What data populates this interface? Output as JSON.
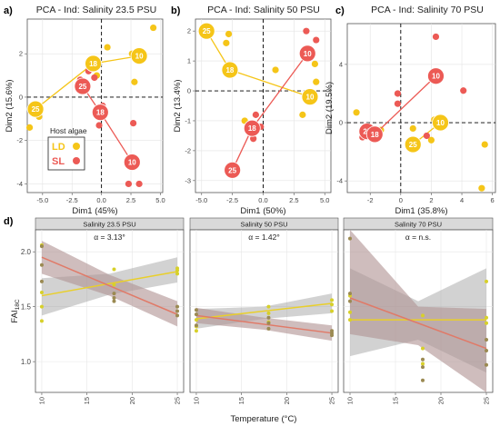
{
  "colors": {
    "LD": "#f5c518",
    "SL": "#ec5a55",
    "LD_line": "#e9cf2a",
    "SL_line": "#e07a68",
    "strip": "#d9d9d9",
    "ribbon": "#8a8a8a"
  },
  "legend": {
    "title": "Host algae",
    "items": [
      "LD",
      "SL"
    ]
  },
  "chart_data": [
    {
      "panel": "a)",
      "type": "scatter",
      "title": "PCA - Ind: Salinity 23.5 PSU",
      "xlabel": "Dim1 (45%)",
      "ylabel": "Dim2 (15.6%)",
      "xlim": [
        -6.3,
        5.2
      ],
      "ylim": [
        -4.4,
        3.6
      ],
      "xticks": [
        -5.0,
        -2.5,
        0.0,
        2.5,
        5.0
      ],
      "yticks": [
        -4,
        -2,
        0,
        2
      ],
      "xtick_labels": [
        "-5.0",
        "-2.5",
        "0.0",
        "2.5",
        "5.0"
      ],
      "ytick_labels": [
        "-4",
        "-2",
        "0",
        "2"
      ],
      "ld_points": [
        [
          -6.1,
          -1.4
        ],
        [
          -5.8,
          -0.4
        ],
        [
          -5.3,
          -0.9
        ],
        [
          0.5,
          2.3
        ],
        [
          2.6,
          2.0
        ],
        [
          2.8,
          0.7
        ],
        [
          4.4,
          3.2
        ],
        [
          -0.4,
          1.0
        ]
      ],
      "sl_points": [
        [
          -1.8,
          0.8
        ],
        [
          -0.6,
          0.9
        ],
        [
          -1.1,
          1.2
        ],
        [
          0.1,
          -0.4
        ],
        [
          2.7,
          -1.2
        ],
        [
          2.3,
          -4.0
        ],
        [
          3.2,
          -4.0
        ],
        [
          -0.2,
          -1.3
        ]
      ],
      "ld_centroids": [
        {
          "label": "25",
          "x": -5.6,
          "y": -0.55
        },
        {
          "label": "18",
          "x": -0.7,
          "y": 1.55
        },
        {
          "label": "10",
          "x": 3.2,
          "y": 1.9
        }
      ],
      "sl_centroids": [
        {
          "label": "25",
          "x": -1.6,
          "y": 0.5
        },
        {
          "label": "18",
          "x": -0.1,
          "y": -0.7
        },
        {
          "label": "10",
          "x": 2.6,
          "y": -3.0
        }
      ]
    },
    {
      "panel": "b)",
      "type": "scatter",
      "title": "PCA - Ind: Salinity 50 PSU",
      "xlabel": "Dim1 (50%)",
      "ylabel": "Dim2 (13.4%)",
      "xlim": [
        -5.5,
        5.5
      ],
      "ylim": [
        -3.4,
        2.4
      ],
      "xticks": [
        -5.0,
        -2.5,
        0.0,
        2.5,
        5.0
      ],
      "yticks": [
        -3,
        -2,
        -1,
        0,
        1,
        2
      ],
      "xtick_labels": [
        "-5.0",
        "-2.5",
        "0.0",
        "2.5",
        "5.0"
      ],
      "ytick_labels": [
        "-3",
        "-2",
        "-1",
        "0",
        "1",
        "2"
      ],
      "ld_points": [
        [
          -2.8,
          1.9
        ],
        [
          -3.0,
          1.6
        ],
        [
          -5.0,
          2.0
        ],
        [
          -1.5,
          -1.0
        ],
        [
          -0.9,
          -1.1
        ],
        [
          3.2,
          -0.8
        ],
        [
          4.2,
          0.9
        ],
        [
          4.3,
          0.3
        ],
        [
          1.0,
          0.7
        ]
      ],
      "sl_points": [
        [
          4.3,
          1.7
        ],
        [
          3.5,
          2.0
        ],
        [
          -0.6,
          -0.8
        ],
        [
          -0.8,
          -1.6
        ],
        [
          -0.2,
          -1.2
        ],
        [
          4.0,
          -0.2
        ],
        [
          -2.6,
          -2.6
        ]
      ],
      "ld_centroids": [
        {
          "label": "25",
          "x": -4.6,
          "y": 2.0
        },
        {
          "label": "18",
          "x": -2.7,
          "y": 0.7
        },
        {
          "label": "10",
          "x": 3.8,
          "y": -0.2
        }
      ],
      "sl_centroids": [
        {
          "label": "25",
          "x": -2.5,
          "y": -2.65
        },
        {
          "label": "18",
          "x": -0.9,
          "y": -1.25
        },
        {
          "label": "10",
          "x": 3.6,
          "y": 1.25
        }
      ]
    },
    {
      "panel": "c)",
      "type": "scatter",
      "title": "PCA - Ind: Salinity 70 PSU",
      "xlabel": "Dim1 (35.8%)",
      "ylabel": "Dim2 (19.5%)",
      "xlim": [
        -3.5,
        6.2
      ],
      "ylim": [
        -4.8,
        6.8
      ],
      "xticks": [
        -2,
        0,
        2,
        4,
        6
      ],
      "yticks": [
        -4,
        0,
        4
      ],
      "xtick_labels": [
        "-2",
        "0",
        "2",
        "4",
        "6"
      ],
      "ytick_labels": [
        "-4",
        "0",
        "4"
      ],
      "ld_points": [
        [
          -2.9,
          0.7
        ],
        [
          -2.4,
          -0.6
        ],
        [
          -1.3,
          -0.5
        ],
        [
          0.8,
          -0.4
        ],
        [
          2.2,
          0.2
        ],
        [
          5.5,
          -1.5
        ],
        [
          5.3,
          -4.5
        ],
        [
          2.0,
          -1.2
        ]
      ],
      "sl_points": [
        [
          -2.5,
          -1.0
        ],
        [
          -1.7,
          -1.1
        ],
        [
          -0.2,
          2.0
        ],
        [
          -0.2,
          1.3
        ],
        [
          1.7,
          -0.9
        ],
        [
          2.3,
          5.9
        ],
        [
          4.1,
          2.2
        ],
        [
          -1.9,
          -0.9
        ]
      ],
      "ld_centroids": [
        {
          "label": "25",
          "x": 0.8,
          "y": -1.5
        },
        {
          "label": "10",
          "x": 2.6,
          "y": -0.0
        }
      ],
      "sl_centroids": [
        {
          "label": "25",
          "x": -2.2,
          "y": -0.6
        },
        {
          "label": "18",
          "x": -1.7,
          "y": -0.8
        },
        {
          "label": "10",
          "x": 2.3,
          "y": 3.2
        }
      ]
    },
    {
      "panel": "d)",
      "type": "scatter",
      "xlabel": "Temperature (°C)",
      "ylabel_main": "FAI",
      "ylabel_sub": "18C",
      "ylim": [
        0.72,
        2.2
      ],
      "xlim": [
        9.3,
        25.7
      ],
      "xticks": [
        10,
        15,
        20,
        25
      ],
      "yticks": [
        1.0,
        1.5,
        2.0
      ],
      "xtick_labels": [
        "10",
        "15",
        "20",
        "25"
      ],
      "ytick_labels": [
        "1.0",
        "1.5",
        "2.0"
      ],
      "facets": [
        {
          "title": "Salinity 23.5 PSU",
          "annotation": "α = 3.13°",
          "ld_points": [
            [
              10,
              1.37
            ],
            [
              10,
              1.5
            ],
            [
              10,
              1.63
            ],
            [
              10,
              2.06
            ],
            [
              18,
              1.84
            ],
            [
              18,
              1.7
            ],
            [
              25,
              1.85
            ],
            [
              25,
              1.83
            ],
            [
              25,
              1.8
            ]
          ],
          "sl_points": [
            [
              10,
              2.05
            ],
            [
              10,
              1.88
            ],
            [
              10,
              1.73
            ],
            [
              18,
              1.62
            ],
            [
              18,
              1.58
            ],
            [
              18,
              1.55
            ],
            [
              25,
              1.5
            ],
            [
              25,
              1.46
            ],
            [
              25,
              1.42
            ]
          ],
          "ld_fit": [
            [
              10,
              1.6
            ],
            [
              25,
              1.82
            ]
          ],
          "sl_fit": [
            [
              10,
              1.95
            ],
            [
              25,
              1.43
            ]
          ],
          "ld_band": [
            [
              10,
              1.42,
              1.76
            ],
            [
              17.5,
              1.61,
              1.8
            ],
            [
              25,
              1.72,
              1.95
            ]
          ],
          "sl_band": [
            [
              10,
              1.8,
              2.1
            ],
            [
              17.5,
              1.6,
              1.79
            ],
            [
              25,
              1.32,
              1.55
            ]
          ]
        },
        {
          "title": "Salinity 50 PSU",
          "annotation": "α = 1.42°",
          "ld_points": [
            [
              10,
              1.28
            ],
            [
              10,
              1.32
            ],
            [
              10,
              1.38
            ],
            [
              18,
              1.5
            ],
            [
              18,
              1.44
            ],
            [
              18,
              1.36
            ],
            [
              25,
              1.56
            ],
            [
              25,
              1.52
            ],
            [
              25,
              1.46
            ]
          ],
          "sl_points": [
            [
              10,
              1.47
            ],
            [
              10,
              1.43
            ],
            [
              10,
              1.33
            ],
            [
              18,
              1.4
            ],
            [
              18,
              1.35
            ],
            [
              18,
              1.3
            ],
            [
              25,
              1.28
            ],
            [
              25,
              1.26
            ],
            [
              25,
              1.24
            ]
          ],
          "ld_fit": [
            [
              10,
              1.39
            ],
            [
              25,
              1.53
            ]
          ],
          "sl_fit": [
            [
              10,
              1.42
            ],
            [
              25,
              1.26
            ]
          ],
          "ld_band": [
            [
              10,
              1.3,
              1.48
            ],
            [
              17.5,
              1.39,
              1.5
            ],
            [
              25,
              1.44,
              1.62
            ]
          ],
          "sl_band": [
            [
              10,
              1.35,
              1.49
            ],
            [
              17.5,
              1.29,
              1.4
            ],
            [
              25,
              1.19,
              1.33
            ]
          ]
        },
        {
          "title": "Salinity 70 PSU",
          "annotation": "α = n.s.",
          "ld_points": [
            [
              10,
              1.6
            ],
            [
              10,
              1.45
            ],
            [
              10,
              1.38
            ],
            [
              18,
              1.42
            ],
            [
              18,
              1.12
            ],
            [
              18,
              0.98
            ],
            [
              25,
              1.73
            ],
            [
              25,
              1.4
            ],
            [
              25,
              1.35
            ]
          ],
          "sl_points": [
            [
              10,
              2.12
            ],
            [
              10,
              1.62
            ],
            [
              10,
              1.55
            ],
            [
              18,
              1.02
            ],
            [
              18,
              0.95
            ],
            [
              18,
              0.83
            ],
            [
              25,
              1.2
            ],
            [
              25,
              1.1
            ],
            [
              25,
              0.97
            ]
          ],
          "ld_fit": [
            [
              10,
              1.38
            ],
            [
              25,
              1.38
            ]
          ],
          "sl_fit": [
            [
              10,
              1.58
            ],
            [
              25,
              1.12
            ]
          ],
          "ld_band": [
            [
              10,
              1.05,
              1.85
            ],
            [
              17.5,
              1.2,
              1.55
            ],
            [
              25,
              0.9,
              1.85
            ]
          ],
          "sl_band": [
            [
              10,
              1.25,
              2.2
            ],
            [
              17.5,
              1.15,
              1.5
            ],
            [
              25,
              0.72,
              1.48
            ]
          ]
        }
      ]
    }
  ]
}
